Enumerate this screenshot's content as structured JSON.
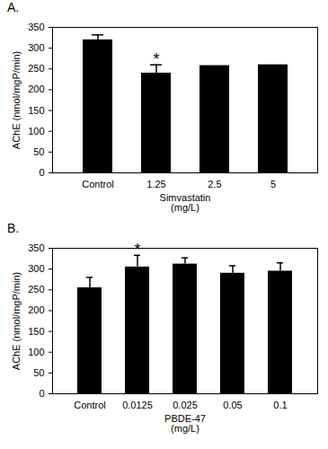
{
  "chart_data": [
    {
      "type": "bar",
      "title": "A.",
      "categories": [
        "Control",
        "1.25",
        "2.5",
        "5"
      ],
      "values": [
        320,
        240,
        258,
        260
      ],
      "error": [
        12,
        20,
        0,
        0
      ],
      "color": "#000000",
      "x_label": "Simvastatin (mg/L)",
      "y_label": "AChE (nmol/mgP/min)",
      "ylim": [
        0,
        350
      ],
      "yticks": [
        0,
        50,
        100,
        150,
        200,
        250,
        300,
        350
      ],
      "annotations": [
        {
          "x": "1.25",
          "text": "*"
        }
      ]
    },
    {
      "type": "bar",
      "title": "B.",
      "categories": [
        "Control",
        "0.0125",
        "0.025",
        "0.05",
        "0.1"
      ],
      "values": [
        255,
        305,
        312,
        290,
        295
      ],
      "error": [
        25,
        28,
        15,
        18,
        20
      ],
      "color": "#000000",
      "x_label": "PBDE-47 (mg/L)",
      "y_label": "AChE (nmol/mgP/min)",
      "ylim": [
        0,
        350
      ],
      "yticks": [
        0,
        50,
        100,
        150,
        200,
        250,
        300,
        350
      ],
      "annotations": [
        {
          "x": "0.0125",
          "text": "*"
        }
      ]
    }
  ]
}
